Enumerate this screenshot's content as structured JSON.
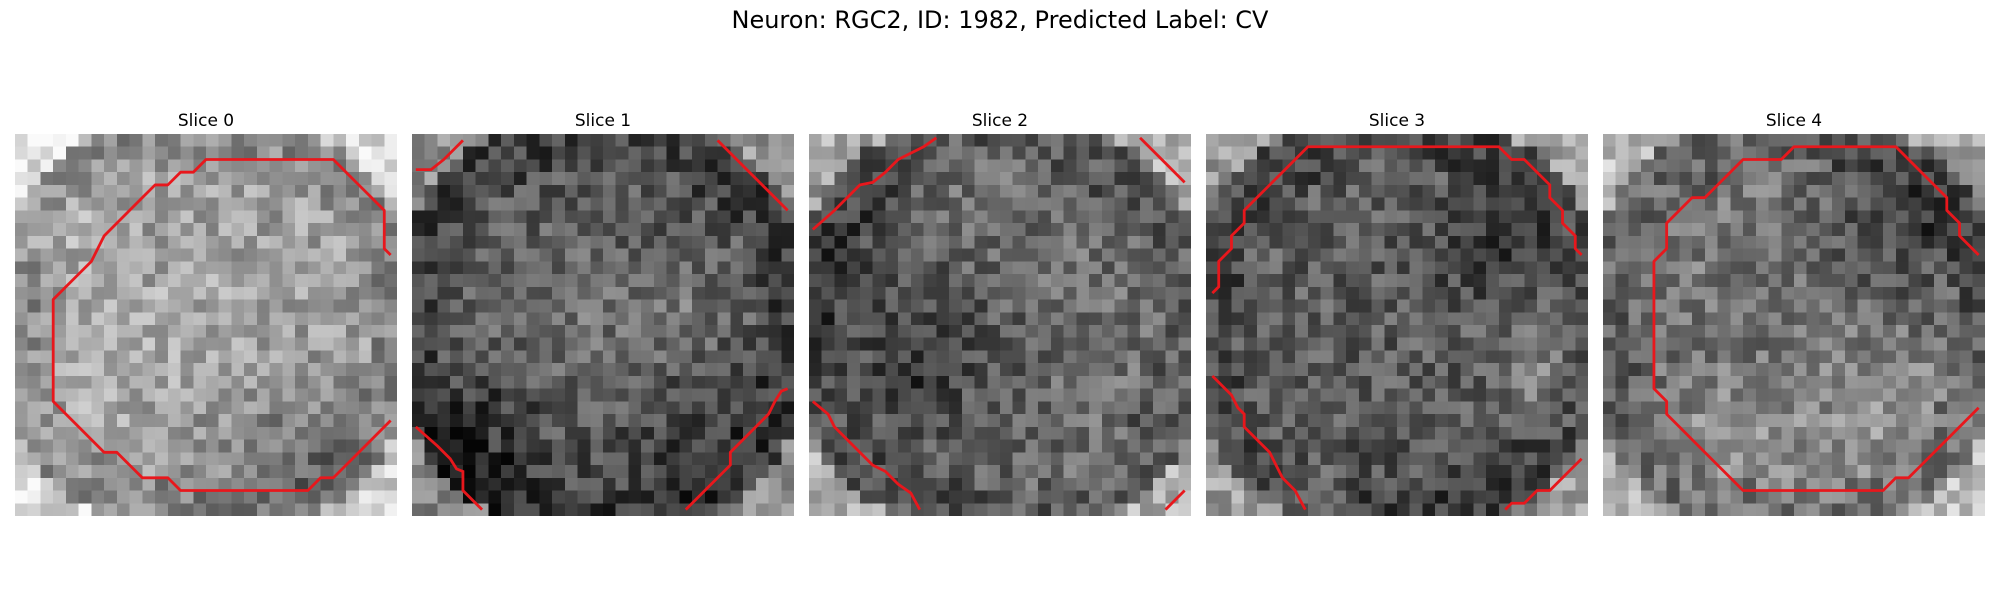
{
  "figure": {
    "title": "Neuron: RGC2, ID: 1982, Predicted Label: CV"
  },
  "slices": [
    {
      "title": "Slice 0",
      "seed": 11,
      "light_center": 0.62,
      "dark": "low"
    },
    {
      "title": "Slice 1",
      "seed": 23,
      "light_center": 0.45,
      "dark": "high"
    },
    {
      "title": "Slice 2",
      "seed": 37,
      "light_center": 0.5,
      "dark": "mid"
    },
    {
      "title": "Slice 3",
      "seed": 41,
      "light_center": 0.42,
      "dark": "mid"
    },
    {
      "title": "Slice 4",
      "seed": 59,
      "light_center": 0.55,
      "dark": "mid"
    }
  ],
  "contour_color": "#e8171c"
}
